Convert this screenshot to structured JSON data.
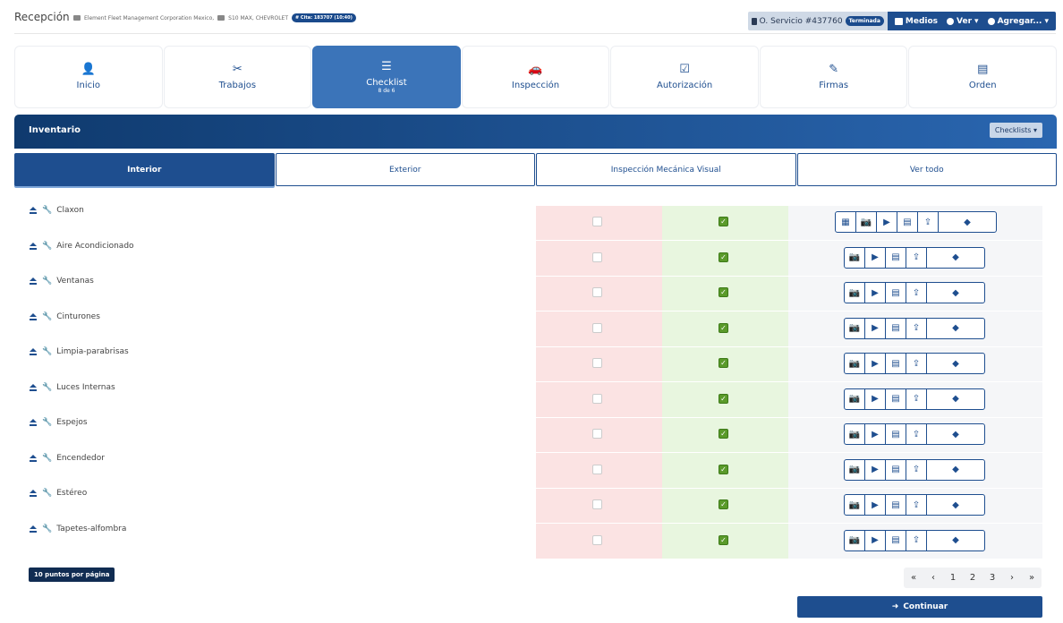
{
  "header": {
    "title": "Recepción",
    "client": "Element Fleet Management Corporation Mexico,",
    "vehicle": "S10 MAX, CHEVROLET",
    "cita": "# Cita: 183707 (10:40)",
    "service_order": "O. Servicio #437760",
    "status": "Terminada",
    "medios": "Medios",
    "ver": "Ver",
    "agregar": "Agregar..."
  },
  "tabs": [
    {
      "label": "Inicio",
      "icon": "user-icon",
      "glyph": "👤"
    },
    {
      "label": "Trabajos",
      "icon": "tools-icon",
      "glyph": "✂"
    },
    {
      "label": "Checklist",
      "sub": "8 de 6",
      "icon": "list-icon",
      "glyph": "☰"
    },
    {
      "label": "Inspección",
      "icon": "car-icon",
      "glyph": "🚗"
    },
    {
      "label": "Autorización",
      "icon": "check-square-icon",
      "glyph": "☑"
    },
    {
      "label": "Firmas",
      "icon": "signature-icon",
      "glyph": "✎"
    },
    {
      "label": "Orden",
      "icon": "document-icon",
      "glyph": "▤"
    }
  ],
  "inventory": {
    "title": "Inventario",
    "checklists_btn": "Checklists"
  },
  "subtabs": [
    "Interior",
    "Exterior",
    "Inspección Mecánica Visual",
    "Ver todo"
  ],
  "rows": [
    {
      "label": "Claxon",
      "extra_grid": true
    },
    {
      "label": "Aire Acondicionado"
    },
    {
      "label": "Ventanas"
    },
    {
      "label": "Cinturones"
    },
    {
      "label": "Limpia-parabrisas"
    },
    {
      "label": "Luces Internas"
    },
    {
      "label": "Espejos"
    },
    {
      "label": "Encendedor"
    },
    {
      "label": "Estéreo"
    },
    {
      "label": "Tapetes-alfombra"
    }
  ],
  "per_page": "10 puntos por página",
  "pagination": [
    "«",
    "‹",
    "1",
    "2",
    "3",
    "›",
    "»"
  ],
  "continue_label": "Continuar"
}
